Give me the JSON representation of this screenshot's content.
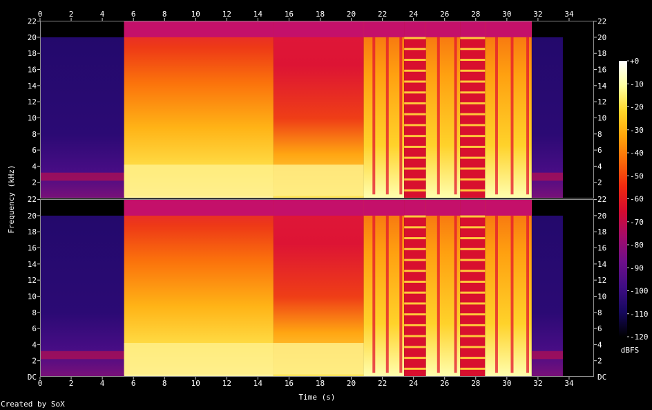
{
  "chart_data": {
    "type": "heatmap",
    "subtype": "spectrogram",
    "channels": 2,
    "xlabel": "Time (s)",
    "ylabel": "Frequency (kHz)",
    "x_ticks": [
      0,
      2,
      4,
      6,
      8,
      10,
      12,
      14,
      16,
      18,
      20,
      22,
      24,
      26,
      28,
      30,
      32,
      34
    ],
    "xlim": [
      0,
      35.6
    ],
    "y_ticks": [
      2,
      4,
      6,
      8,
      10,
      12,
      14,
      16,
      18,
      20,
      22
    ],
    "y_top_label": "22",
    "y_bottom_label": "DC",
    "ylim": [
      0,
      22.05
    ],
    "colorbar": {
      "label": "dBFS",
      "ticks": [
        "+0",
        "-10",
        "-20",
        "-30",
        "-40",
        "-50",
        "-60",
        "-70",
        "-80",
        "-90",
        "-100",
        "-110",
        "-120"
      ],
      "range": [
        -120,
        0
      ],
      "colormap": [
        "#000000",
        "#16085e",
        "#400d84",
        "#6e0f8a",
        "#a40c6a",
        "#d50b2f",
        "#f02a10",
        "#fa6a09",
        "#ffa40a",
        "#ffd629",
        "#ffff9e",
        "#ffffff"
      ]
    },
    "segments": [
      {
        "start": 0.0,
        "end": 5.4,
        "level": "quiet",
        "top_khz": 20
      },
      {
        "start": 5.4,
        "end": 15.0,
        "level": "loud",
        "top_khz": 22
      },
      {
        "start": 15.0,
        "end": 20.8,
        "level": "loud-decay",
        "top_khz": 22
      },
      {
        "start": 20.8,
        "end": 23.4,
        "level": "loud-pulsed",
        "top_khz": 22
      },
      {
        "start": 23.4,
        "end": 24.8,
        "level": "harmonic-tones",
        "top_khz": 22
      },
      {
        "start": 24.8,
        "end": 27.0,
        "level": "loud-pulsed",
        "top_khz": 22
      },
      {
        "start": 27.0,
        "end": 28.6,
        "level": "harmonic-tones",
        "top_khz": 22
      },
      {
        "start": 28.6,
        "end": 31.6,
        "level": "loud-pulsed",
        "top_khz": 22
      },
      {
        "start": 31.6,
        "end": 33.6,
        "level": "quiet",
        "top_khz": 20
      }
    ]
  },
  "footer": {
    "credit": "Created by SoX"
  }
}
